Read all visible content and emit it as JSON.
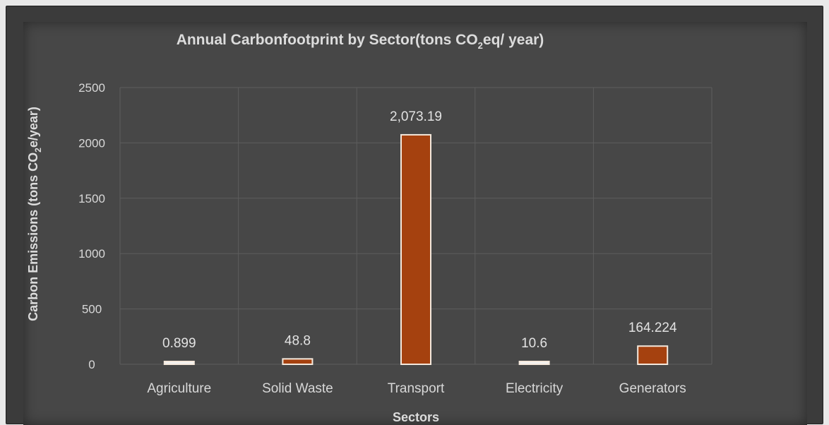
{
  "chart_data": {
    "type": "bar",
    "title_main": "Annual Carbonfootprint by Sector(tons CO",
    "title_sub": "2",
    "title_tail": "eq/ year)",
    "xlabel": "Sectors",
    "ylabel_main": "Carbon Emissions (tons CO",
    "ylabel_sub": "2",
    "ylabel_tail": "e/year)",
    "categories": [
      "Agriculture",
      "Solid Waste",
      "Transport",
      "Electricity",
      "Generators"
    ],
    "values": [
      0.899,
      48.8,
      2073.19,
      10.6,
      164.224
    ],
    "data_labels": [
      "0.899",
      "48.8",
      "2,073.19",
      "10.6",
      "164.224"
    ],
    "ylim": [
      0,
      2500
    ],
    "yticks": [
      0,
      500,
      1000,
      1500,
      2000,
      2500
    ],
    "ytick_labels": [
      "0",
      "500",
      "1000",
      "1500",
      "2000",
      "2500"
    ],
    "grid": true,
    "bar_colors": [
      "#f3f3f3",
      "#a5410f",
      "#a5410f",
      "#f3f3f3",
      "#a5410f"
    ],
    "bar_outline": "#f4e8dc",
    "gridline_color": "#5d5d5d"
  }
}
